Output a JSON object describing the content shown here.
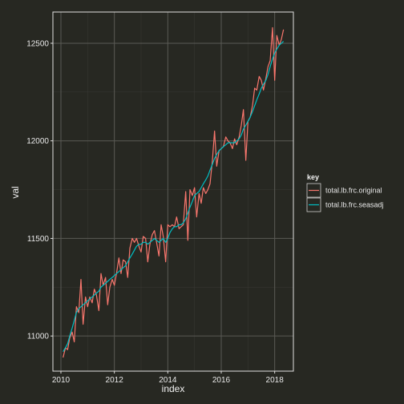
{
  "theme": {
    "background": "#272822",
    "panel_border": "#e0e0e0",
    "grid_major": "#5a5a55",
    "grid_minor": "#3a3a35",
    "text": "#e8e8e8"
  },
  "chart_data": {
    "type": "line",
    "xlabel": "index",
    "ylabel": "val",
    "xlim": [
      2009.7,
      2018.7
    ],
    "ylim": [
      10820,
      12660
    ],
    "x_ticks": [
      2010,
      2012,
      2014,
      2016,
      2018
    ],
    "x_tick_labels": [
      "2010",
      "2012",
      "2014",
      "2016",
      "2018"
    ],
    "y_ticks": [
      11000,
      11500,
      12000,
      12500
    ],
    "y_tick_labels": [
      "11000",
      "11500",
      "12000",
      "12500"
    ],
    "grid": true,
    "legend": {
      "title": "key",
      "position": "right",
      "entries": [
        "total.lb.frc.original",
        "total.lb.frc.seasadj"
      ]
    },
    "series": [
      {
        "name": "total.lb.frc.original",
        "color": "#f8766d",
        "x": [
          2010.08,
          2010.17,
          2010.25,
          2010.33,
          2010.42,
          2010.5,
          2010.58,
          2010.67,
          2010.75,
          2010.83,
          2010.92,
          2011.0,
          2011.08,
          2011.17,
          2011.25,
          2011.33,
          2011.42,
          2011.5,
          2011.58,
          2011.67,
          2011.75,
          2011.83,
          2011.92,
          2012.0,
          2012.08,
          2012.17,
          2012.25,
          2012.33,
          2012.42,
          2012.5,
          2012.58,
          2012.67,
          2012.75,
          2012.83,
          2012.92,
          2013.0,
          2013.08,
          2013.17,
          2013.25,
          2013.33,
          2013.42,
          2013.5,
          2013.58,
          2013.67,
          2013.75,
          2013.83,
          2013.92,
          2014.0,
          2014.08,
          2014.17,
          2014.25,
          2014.33,
          2014.42,
          2014.5,
          2014.58,
          2014.67,
          2014.75,
          2014.83,
          2014.92,
          2015.0,
          2015.08,
          2015.17,
          2015.25,
          2015.33,
          2015.42,
          2015.5,
          2015.58,
          2015.67,
          2015.75,
          2015.83,
          2015.92,
          2016.0,
          2016.08,
          2016.17,
          2016.25,
          2016.33,
          2016.42,
          2016.5,
          2016.58,
          2016.67,
          2016.75,
          2016.83,
          2016.92,
          2017.0,
          2017.08,
          2017.17,
          2017.25,
          2017.33,
          2017.42,
          2017.5,
          2017.58,
          2017.67,
          2017.75,
          2017.83,
          2017.92,
          2018.0,
          2018.08,
          2018.17,
          2018.25,
          2018.33
        ],
        "y": [
          10890,
          10940,
          10930,
          10990,
          11020,
          10970,
          11150,
          11120,
          11290,
          11060,
          11200,
          11150,
          11200,
          11170,
          11240,
          11210,
          11130,
          11320,
          11260,
          11300,
          11160,
          11250,
          11290,
          11260,
          11320,
          11400,
          11320,
          11390,
          11380,
          11300,
          11450,
          11500,
          11480,
          11500,
          11460,
          11430,
          11510,
          11500,
          11380,
          11470,
          11520,
          11540,
          11480,
          11410,
          11570,
          11510,
          11380,
          11570,
          11560,
          11570,
          11560,
          11610,
          11550,
          11560,
          11570,
          11740,
          11490,
          11750,
          11720,
          11760,
          11610,
          11730,
          11680,
          11760,
          11730,
          11750,
          11780,
          11900,
          12050,
          11870,
          11950,
          11960,
          11970,
          12020,
          12000,
          11990,
          11960,
          12010,
          11980,
          12020,
          12080,
          12160,
          11900,
          12100,
          12120,
          12180,
          12270,
          12260,
          12330,
          12310,
          12260,
          12320,
          12380,
          12410,
          12580,
          12310,
          12540,
          12490,
          12520,
          12570
        ]
      },
      {
        "name": "total.lb.frc.seasadj",
        "color": "#00bfc4",
        "x": [
          2010.08,
          2010.17,
          2010.25,
          2010.33,
          2010.42,
          2010.5,
          2010.58,
          2010.67,
          2010.75,
          2010.83,
          2010.92,
          2011.0,
          2011.08,
          2011.17,
          2011.25,
          2011.33,
          2011.42,
          2011.5,
          2011.58,
          2011.67,
          2011.75,
          2011.83,
          2011.92,
          2012.0,
          2012.08,
          2012.17,
          2012.25,
          2012.33,
          2012.42,
          2012.5,
          2012.58,
          2012.67,
          2012.75,
          2012.83,
          2012.92,
          2013.0,
          2013.08,
          2013.17,
          2013.25,
          2013.33,
          2013.42,
          2013.5,
          2013.58,
          2013.67,
          2013.75,
          2013.83,
          2013.92,
          2014.0,
          2014.08,
          2014.17,
          2014.25,
          2014.33,
          2014.42,
          2014.5,
          2014.58,
          2014.67,
          2014.75,
          2014.83,
          2014.92,
          2015.0,
          2015.08,
          2015.17,
          2015.25,
          2015.33,
          2015.42,
          2015.5,
          2015.58,
          2015.67,
          2015.75,
          2015.83,
          2015.92,
          2016.0,
          2016.08,
          2016.17,
          2016.25,
          2016.33,
          2016.42,
          2016.5,
          2016.58,
          2016.67,
          2016.75,
          2016.83,
          2016.92,
          2017.0,
          2017.08,
          2017.17,
          2017.25,
          2017.33,
          2017.42,
          2017.5,
          2017.58,
          2017.67,
          2017.75,
          2017.83,
          2017.92,
          2018.0,
          2018.08,
          2018.17,
          2018.25,
          2018.33
        ],
        "y": [
          10920,
          10940,
          10960,
          11000,
          11040,
          11080,
          11120,
          11140,
          11150,
          11160,
          11170,
          11180,
          11190,
          11200,
          11210,
          11220,
          11230,
          11250,
          11260,
          11270,
          11280,
          11290,
          11300,
          11310,
          11320,
          11330,
          11340,
          11350,
          11360,
          11380,
          11400,
          11420,
          11440,
          11460,
          11470,
          11470,
          11480,
          11480,
          11470,
          11480,
          11490,
          11500,
          11490,
          11480,
          11490,
          11500,
          11480,
          11500,
          11530,
          11550,
          11560,
          11560,
          11570,
          11570,
          11580,
          11600,
          11630,
          11660,
          11690,
          11720,
          11730,
          11740,
          11760,
          11780,
          11800,
          11820,
          11850,
          11880,
          11910,
          11930,
          11950,
          11960,
          11970,
          11980,
          11990,
          11990,
          11990,
          11990,
          12000,
          12010,
          12030,
          12060,
          12080,
          12100,
          12120,
          12150,
          12180,
          12210,
          12240,
          12270,
          12290,
          12310,
          12340,
          12380,
          12420,
          12450,
          12470,
          12490,
          12500,
          12510
        ]
      }
    ]
  }
}
